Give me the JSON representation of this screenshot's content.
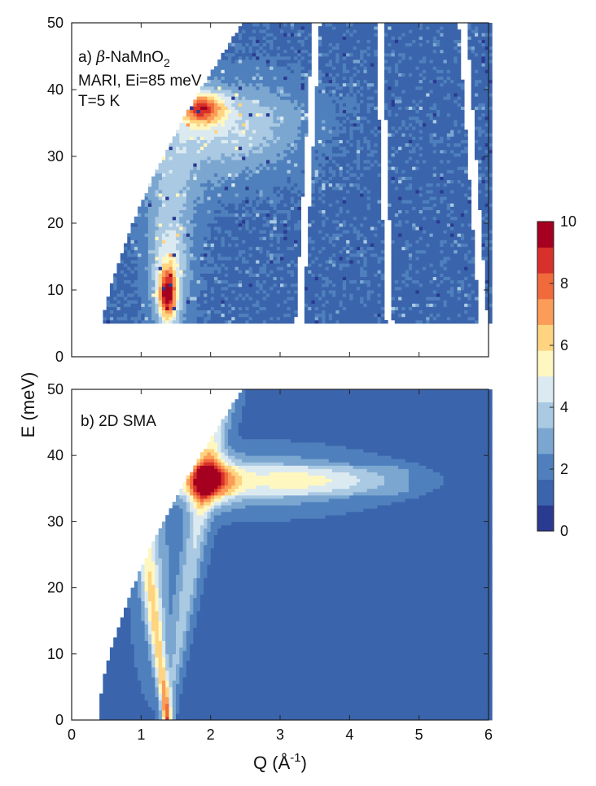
{
  "figure": {
    "ylabel": "E (meV)",
    "xlabel_prefix": "Q (Å",
    "xlabel_sup": "-1",
    "xlabel_suffix": ")"
  },
  "colormap": {
    "stops": [
      "#2b3a91",
      "#3a64ac",
      "#4f80bd",
      "#7aa6d0",
      "#aac9e2",
      "#dbeaf1",
      "#fff7c0",
      "#fed480",
      "#fb9d59",
      "#f16a3b",
      "#d8302b",
      "#a5001f"
    ],
    "ticks": [
      0,
      2,
      4,
      6,
      8,
      10
    ],
    "range": [
      0,
      10
    ]
  },
  "chart_data": [
    {
      "type": "heatmap",
      "panel": "a",
      "label_prefix": "a) ",
      "label_beta": "β",
      "label_compound": "-NaMnO",
      "label_sub": "2",
      "annotation_line1": "MARI, Ei=85 meV",
      "annotation_line2": "T=5 K",
      "xlim": [
        0,
        6
      ],
      "ylim": [
        0,
        50
      ],
      "xticks": [
        0,
        1,
        2,
        3,
        4,
        5,
        6
      ],
      "yticks": [
        0,
        10,
        20,
        30,
        40,
        50
      ],
      "background_intensity": 1.5,
      "min_energy": 5,
      "features": [
        {
          "description_q": 1.35,
          "e": 9,
          "intensity": 8
        },
        {
          "description_q": 1.85,
          "e": 37,
          "intensity": 7
        },
        {
          "description_q": 2.3,
          "e": 36,
          "intensity": 3.5
        }
      ],
      "detector_gaps_q_at_E50": [
        3.5,
        4.4,
        5.6
      ],
      "detector_gaps_q_at_E5": [
        3.25,
        4.55,
        5.9
      ]
    },
    {
      "type": "heatmap",
      "panel": "b",
      "label": "b) 2D SMA",
      "xlim": [
        0,
        6
      ],
      "ylim": [
        0,
        50
      ],
      "xticks": [
        0,
        1,
        2,
        3,
        4,
        5,
        6
      ],
      "yticks": [
        0,
        10,
        20,
        30,
        40,
        50
      ],
      "background_intensity": 1.5,
      "features": [
        {
          "description_q": 1.35,
          "e": 7,
          "intensity": 8.5
        },
        {
          "description_q": 2.0,
          "e": 36,
          "intensity": 7.5
        },
        {
          "description_q": 3.3,
          "e": 36,
          "intensity": 4.2
        }
      ]
    }
  ]
}
